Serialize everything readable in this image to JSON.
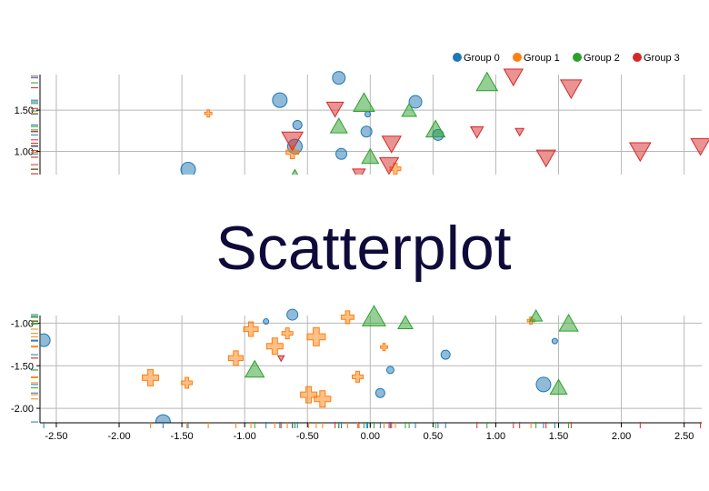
{
  "chart_data": {
    "type": "scatter",
    "title": "Scatterplot",
    "grid": true,
    "legend_position": "top-right",
    "legend": [
      {
        "name": "Group 0",
        "color": "#1f77b4",
        "shape": "circle"
      },
      {
        "name": "Group 1",
        "color": "#ff7f0e",
        "shape": "cross"
      },
      {
        "name": "Group 2",
        "color": "#2ca02c",
        "shape": "triangle-up"
      },
      {
        "name": "Group 3",
        "color": "#d62728",
        "shape": "triangle-down"
      }
    ],
    "x_ticks": [
      "-2.50",
      "-2.00",
      "-1.50",
      "-1.00",
      "-0.50",
      "0.00",
      "0.50",
      "1.00",
      "1.50",
      "2.00",
      "2.50"
    ],
    "xlim": [
      -2.63,
      2.64
    ],
    "panels": [
      {
        "name": "top",
        "ylim": [
          0.72,
          1.93
        ],
        "y_ticks": [
          "1.50",
          "1.00"
        ],
        "points": [
          {
            "g": 0,
            "x": -1.45,
            "y": 0.78,
            "s": 8
          },
          {
            "g": 0,
            "x": -0.72,
            "y": 1.62,
            "s": 8
          },
          {
            "g": 0,
            "x": -0.58,
            "y": 1.32,
            "s": 5
          },
          {
            "g": 0,
            "x": -0.6,
            "y": 1.06,
            "s": 8
          },
          {
            "g": 0,
            "x": -0.25,
            "y": 1.89,
            "s": 7
          },
          {
            "g": 0,
            "x": -0.23,
            "y": 0.97,
            "s": 6
          },
          {
            "g": 0,
            "x": -0.03,
            "y": 1.24,
            "s": 6
          },
          {
            "g": 0,
            "x": -0.02,
            "y": 1.45,
            "s": 3
          },
          {
            "g": 0,
            "x": 0.36,
            "y": 1.6,
            "s": 7
          },
          {
            "g": 0,
            "x": 0.54,
            "y": 1.2,
            "s": 6
          },
          {
            "g": 1,
            "x": -1.29,
            "y": 1.46,
            "s": 4
          },
          {
            "g": 1,
            "x": -0.62,
            "y": 0.99,
            "s": 7
          },
          {
            "g": 1,
            "x": 0.2,
            "y": 0.79,
            "s": 6
          },
          {
            "g": 2,
            "x": -0.6,
            "y": 0.73,
            "s": 4
          },
          {
            "g": 2,
            "x": -0.25,
            "y": 1.3,
            "s": 8
          },
          {
            "g": 2,
            "x": -0.05,
            "y": 1.58,
            "s": 10
          },
          {
            "g": 2,
            "x": 0.0,
            "y": 0.93,
            "s": 8
          },
          {
            "g": 2,
            "x": 0.31,
            "y": 1.49,
            "s": 7
          },
          {
            "g": 2,
            "x": 0.52,
            "y": 1.26,
            "s": 9
          },
          {
            "g": 2,
            "x": 0.93,
            "y": 1.83,
            "s": 10
          },
          {
            "g": 3,
            "x": -0.62,
            "y": 1.14,
            "s": 10
          },
          {
            "g": 3,
            "x": -0.28,
            "y": 1.52,
            "s": 8
          },
          {
            "g": 3,
            "x": -0.09,
            "y": 0.73,
            "s": 6
          },
          {
            "g": 3,
            "x": 0.15,
            "y": 0.84,
            "s": 9
          },
          {
            "g": 3,
            "x": 0.17,
            "y": 1.1,
            "s": 9
          },
          {
            "g": 3,
            "x": 0.85,
            "y": 1.24,
            "s": 6
          },
          {
            "g": 3,
            "x": 1.14,
            "y": 1.91,
            "s": 9
          },
          {
            "g": 3,
            "x": 1.19,
            "y": 1.24,
            "s": 4
          },
          {
            "g": 3,
            "x": 1.4,
            "y": 0.93,
            "s": 9
          },
          {
            "g": 3,
            "x": 1.6,
            "y": 1.77,
            "s": 10
          },
          {
            "g": 3,
            "x": 2.15,
            "y": 1.01,
            "s": 10
          },
          {
            "g": 3,
            "x": 2.63,
            "y": 1.07,
            "s": 9
          }
        ]
      },
      {
        "name": "bottom",
        "ylim": [
          -2.17,
          -0.91
        ],
        "y_ticks": [
          "-1.00",
          "-1.50",
          "-2.00"
        ],
        "points": [
          {
            "g": 0,
            "x": -2.6,
            "y": -1.2,
            "s": 7
          },
          {
            "g": 0,
            "x": -1.65,
            "y": -2.16,
            "s": 8
          },
          {
            "g": 0,
            "x": -0.83,
            "y": -0.98,
            "s": 3
          },
          {
            "g": 0,
            "x": -0.62,
            "y": -0.9,
            "s": 6
          },
          {
            "g": 0,
            "x": 0.08,
            "y": -1.82,
            "s": 5
          },
          {
            "g": 0,
            "x": 0.16,
            "y": -1.55,
            "s": 4
          },
          {
            "g": 0,
            "x": 0.6,
            "y": -1.37,
            "s": 5
          },
          {
            "g": 0,
            "x": 1.38,
            "y": -1.72,
            "s": 8
          },
          {
            "g": 0,
            "x": 1.47,
            "y": -1.21,
            "s": 3
          },
          {
            "g": 1,
            "x": -1.75,
            "y": -1.64,
            "s": 9
          },
          {
            "g": 1,
            "x": -1.46,
            "y": -1.7,
            "s": 6
          },
          {
            "g": 1,
            "x": -1.07,
            "y": -1.41,
            "s": 8
          },
          {
            "g": 1,
            "x": -0.95,
            "y": -1.07,
            "s": 8
          },
          {
            "g": 1,
            "x": -0.76,
            "y": -1.27,
            "s": 9
          },
          {
            "g": 1,
            "x": -0.66,
            "y": -1.12,
            "s": 6
          },
          {
            "g": 1,
            "x": -0.49,
            "y": -1.84,
            "s": 9
          },
          {
            "g": 1,
            "x": -0.43,
            "y": -1.16,
            "s": 10
          },
          {
            "g": 1,
            "x": -0.38,
            "y": -1.89,
            "s": 9
          },
          {
            "g": 1,
            "x": -0.18,
            "y": -0.93,
            "s": 7
          },
          {
            "g": 1,
            "x": -0.1,
            "y": -1.63,
            "s": 6
          },
          {
            "g": 1,
            "x": 0.11,
            "y": -1.28,
            "s": 4
          },
          {
            "g": 1,
            "x": 1.28,
            "y": -0.97,
            "s": 4
          },
          {
            "g": 2,
            "x": -0.92,
            "y": -1.55,
            "s": 9
          },
          {
            "g": 2,
            "x": 0.03,
            "y": -0.93,
            "s": 11
          },
          {
            "g": 2,
            "x": 0.28,
            "y": -1.0,
            "s": 7
          },
          {
            "g": 2,
            "x": 1.32,
            "y": -0.92,
            "s": 6
          },
          {
            "g": 2,
            "x": 1.5,
            "y": -1.76,
            "s": 8
          },
          {
            "g": 2,
            "x": 1.58,
            "y": -1.01,
            "s": 9
          },
          {
            "g": 3,
            "x": -0.71,
            "y": -1.41,
            "s": 3
          }
        ]
      }
    ]
  }
}
